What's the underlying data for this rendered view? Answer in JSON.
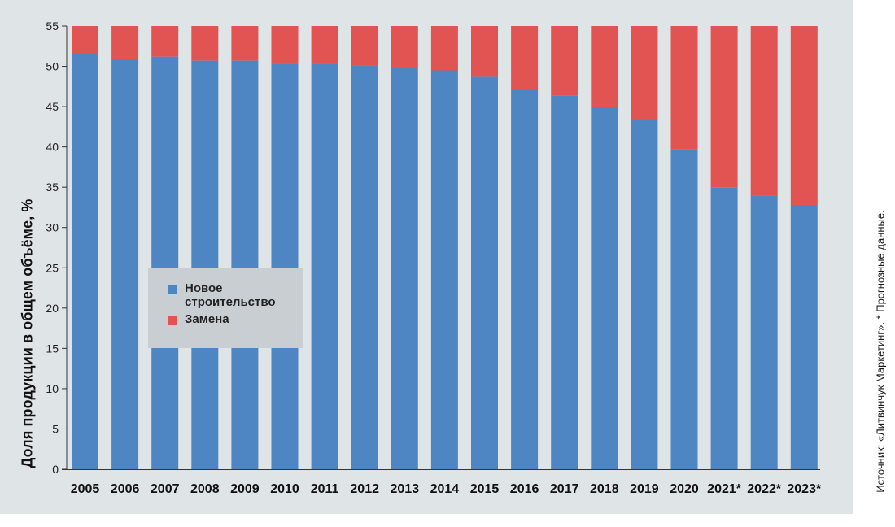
{
  "chart_data": {
    "type": "bar",
    "stacked": true,
    "ylabel": "Доля продукции в общем объёме, %",
    "ylim": [
      0,
      55
    ],
    "yticks": [
      0,
      5,
      10,
      15,
      20,
      25,
      30,
      35,
      40,
      45,
      50,
      55
    ],
    "categories": [
      "2005",
      "2006",
      "2007",
      "2008",
      "2009",
      "2010",
      "2011",
      "2012",
      "2013",
      "2014",
      "2015",
      "2016",
      "2017",
      "2018",
      "2019",
      "2020",
      "2021*",
      "2022*",
      "2023*"
    ],
    "series": [
      {
        "name": "Новое строительство",
        "color": "#4e86c4",
        "values": [
          51.5,
          50.9,
          51.2,
          50.7,
          50.7,
          50.3,
          50.3,
          50.1,
          49.8,
          49.5,
          48.7,
          47.2,
          46.4,
          45.0,
          43.3,
          39.7,
          35.0,
          34.0,
          32.8
        ]
      },
      {
        "name": "Замена",
        "color": "#e25452",
        "values": [
          3.5,
          4.1,
          3.8,
          4.3,
          4.3,
          4.7,
          4.7,
          4.9,
          5.2,
          5.5,
          6.3,
          7.8,
          8.6,
          10.0,
          11.7,
          15.3,
          20.0,
          21.0,
          22.2
        ]
      }
    ],
    "legend": "inside-left",
    "grid": false
  },
  "source_note": "Источник: «Литвинчук Маркетинг».  * Прогнозные данные."
}
